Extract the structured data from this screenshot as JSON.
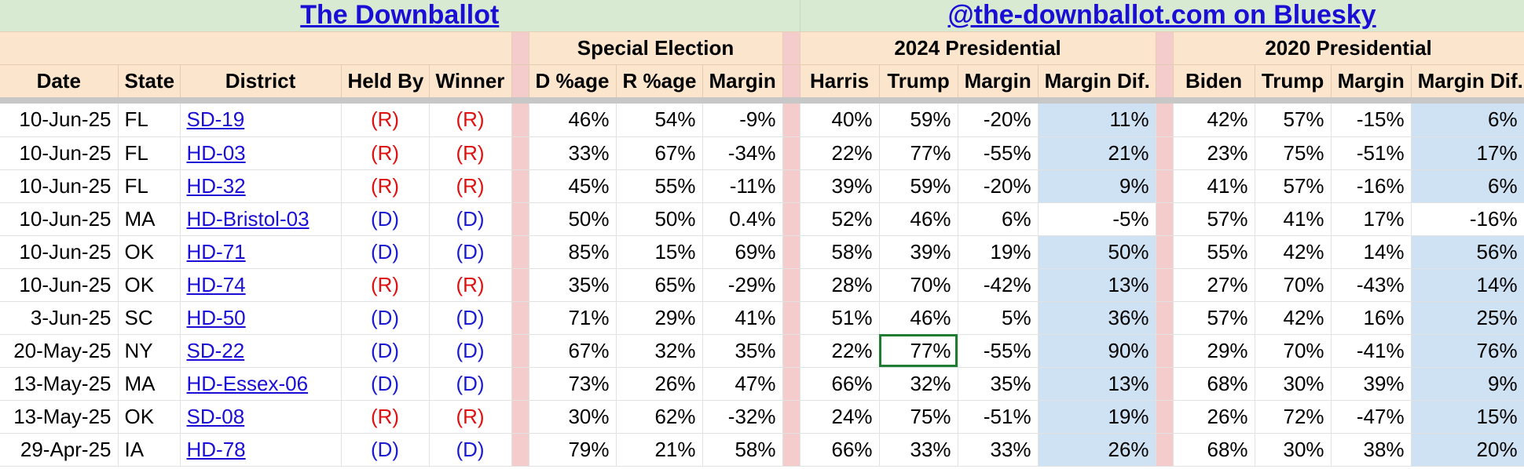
{
  "banner": {
    "left_link": "The Downballot",
    "right_link": "@the-downballot.com on Bluesky"
  },
  "groups": {
    "special": "Special Election",
    "pres2024": "2024 Presidential",
    "pres2020": "2020 Presidential"
  },
  "headers": {
    "date": "Date",
    "state": "State",
    "district": "District",
    "held_by": "Held By",
    "winner": "Winner",
    "d_pct": "D %age",
    "r_pct": "R %age",
    "margin": "Margin",
    "harris": "Harris",
    "trump24": "Trump",
    "margin24": "Margin",
    "dif24": "Margin Dif.",
    "biden": "Biden",
    "trump20": "Trump",
    "margin20": "Margin",
    "dif20": "Margin Dif."
  },
  "colors": {
    "banner_bg": "#d9ead3",
    "header_bg": "#fce5cd",
    "separator_bg": "#f4cccc",
    "diff_bg": "#cfe2f3",
    "republican": "#e01010",
    "democrat": "#1a1ad0",
    "link": "#1a0dd6",
    "selection": "#1e7d32"
  },
  "rows": [
    {
      "date": "10-Jun-25",
      "state": "FL",
      "district": "SD-19",
      "held_by": "(R)",
      "winner": "(R)",
      "d_pct": "46%",
      "r_pct": "54%",
      "margin": "-9%",
      "harris": "40%",
      "trump24": "59%",
      "margin24": "-20%",
      "dif24": "11%",
      "biden": "42%",
      "trump20": "57%",
      "margin20": "-15%",
      "dif20": "6%"
    },
    {
      "date": "10-Jun-25",
      "state": "FL",
      "district": "HD-03",
      "held_by": "(R)",
      "winner": "(R)",
      "d_pct": "33%",
      "r_pct": "67%",
      "margin": "-34%",
      "harris": "22%",
      "trump24": "77%",
      "margin24": "-55%",
      "dif24": "21%",
      "biden": "23%",
      "trump20": "75%",
      "margin20": "-51%",
      "dif20": "17%"
    },
    {
      "date": "10-Jun-25",
      "state": "FL",
      "district": "HD-32",
      "held_by": "(R)",
      "winner": "(R)",
      "d_pct": "45%",
      "r_pct": "55%",
      "margin": "-11%",
      "harris": "39%",
      "trump24": "59%",
      "margin24": "-20%",
      "dif24": "9%",
      "biden": "41%",
      "trump20": "57%",
      "margin20": "-16%",
      "dif20": "6%"
    },
    {
      "date": "10-Jun-25",
      "state": "MA",
      "district": "HD-Bristol-03",
      "held_by": "(D)",
      "winner": "(D)",
      "d_pct": "50%",
      "r_pct": "50%",
      "margin": "0.4%",
      "harris": "52%",
      "trump24": "46%",
      "margin24": "6%",
      "dif24": "-5%",
      "biden": "57%",
      "trump20": "41%",
      "margin20": "17%",
      "dif20": "-16%"
    },
    {
      "date": "10-Jun-25",
      "state": "OK",
      "district": "HD-71",
      "held_by": "(D)",
      "winner": "(D)",
      "d_pct": "85%",
      "r_pct": "15%",
      "margin": "69%",
      "harris": "58%",
      "trump24": "39%",
      "margin24": "19%",
      "dif24": "50%",
      "biden": "55%",
      "trump20": "42%",
      "margin20": "14%",
      "dif20": "56%"
    },
    {
      "date": "10-Jun-25",
      "state": "OK",
      "district": "HD-74",
      "held_by": "(R)",
      "winner": "(R)",
      "d_pct": "35%",
      "r_pct": "65%",
      "margin": "-29%",
      "harris": "28%",
      "trump24": "70%",
      "margin24": "-42%",
      "dif24": "13%",
      "biden": "27%",
      "trump20": "70%",
      "margin20": "-43%",
      "dif20": "14%"
    },
    {
      "date": "3-Jun-25",
      "state": "SC",
      "district": "HD-50",
      "held_by": "(D)",
      "winner": "(D)",
      "d_pct": "71%",
      "r_pct": "29%",
      "margin": "41%",
      "harris": "51%",
      "trump24": "46%",
      "margin24": "5%",
      "dif24": "36%",
      "biden": "57%",
      "trump20": "42%",
      "margin20": "16%",
      "dif20": "25%"
    },
    {
      "date": "20-May-25",
      "state": "NY",
      "district": "SD-22",
      "held_by": "(D)",
      "winner": "(D)",
      "d_pct": "67%",
      "r_pct": "32%",
      "margin": "35%",
      "harris": "22%",
      "trump24": "77%",
      "margin24": "-55%",
      "dif24": "90%",
      "biden": "29%",
      "trump20": "70%",
      "margin20": "-41%",
      "dif20": "76%"
    },
    {
      "date": "13-May-25",
      "state": "MA",
      "district": "HD-Essex-06",
      "held_by": "(D)",
      "winner": "(D)",
      "d_pct": "73%",
      "r_pct": "26%",
      "margin": "47%",
      "harris": "66%",
      "trump24": "32%",
      "margin24": "35%",
      "dif24": "13%",
      "biden": "68%",
      "trump20": "30%",
      "margin20": "39%",
      "dif20": "9%"
    },
    {
      "date": "13-May-25",
      "state": "OK",
      "district": "SD-08",
      "held_by": "(R)",
      "winner": "(R)",
      "d_pct": "30%",
      "r_pct": "62%",
      "margin": "-32%",
      "harris": "24%",
      "trump24": "75%",
      "margin24": "-51%",
      "dif24": "19%",
      "biden": "26%",
      "trump20": "72%",
      "margin20": "-47%",
      "dif20": "15%"
    },
    {
      "date": "29-Apr-25",
      "state": "IA",
      "district": "HD-78",
      "held_by": "(D)",
      "winner": "(D)",
      "d_pct": "79%",
      "r_pct": "21%",
      "margin": "58%",
      "harris": "66%",
      "trump24": "33%",
      "margin24": "33%",
      "dif24": "26%",
      "biden": "68%",
      "trump20": "30%",
      "margin20": "38%",
      "dif20": "20%"
    }
  ]
}
